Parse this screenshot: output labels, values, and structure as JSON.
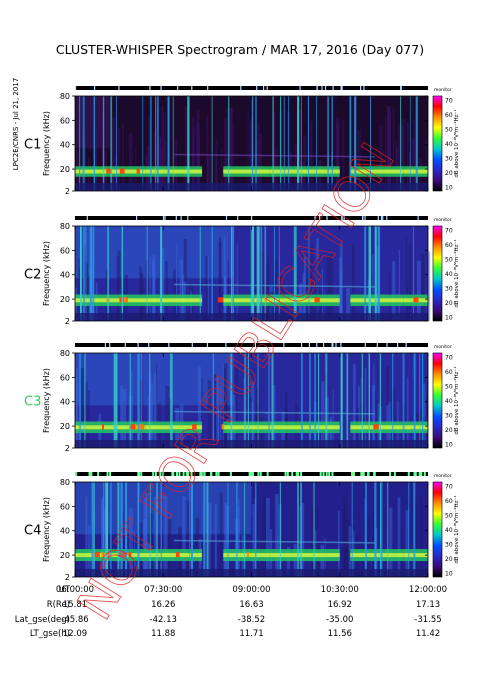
{
  "title": "CLUSTER-WHISPER Spectrogram / MAR 17, 2016 (Day 077)",
  "side_text": "LPC2E/CNRS - Jul 21, 2017",
  "watermark": "NOT FOR PUBLICATION",
  "colorbar": {
    "ticks": [
      "70",
      "60",
      "50",
      "40",
      "30",
      "20",
      "10"
    ],
    "label": "dB above 10⁻⁸V²m⁻²Hz⁻¹",
    "mode_label": "monitor",
    "colors": [
      "#ff00ff",
      "#ff0000",
      "#ff8c00",
      "#ffff00",
      "#32ff32",
      "#00c8c8",
      "#0050ff",
      "#2828c8",
      "#3c0a78",
      "#000000"
    ]
  },
  "chart_data": {
    "type": "heatmap",
    "title": "CLUSTER-WHISPER Spectrogram / MAR 17, 2016 (Day 077)",
    "ylabel": "Frequency (kHz)",
    "yticks": [
      "80",
      "60",
      "40",
      "20",
      "2"
    ],
    "ylim": [
      2,
      80
    ],
    "x_ticks": [
      "06:00:00",
      "07:30:00",
      "09:00:00",
      "10:30:00",
      "12:00:00"
    ],
    "xlim": [
      "06:00:00",
      "12:00:00"
    ],
    "colorbar_range": [
      10,
      70
    ],
    "panels": [
      {
        "name": "C1",
        "name_color": "#000000",
        "base": "#1c0a2c",
        "band_khz": 18,
        "band_strength": 0.7,
        "bright_region": [
          0.0,
          0.1
        ]
      },
      {
        "name": "C2",
        "name_color": "#000000",
        "base": "#28289c",
        "band_khz": 19,
        "band_strength": 0.9,
        "bright_region": [
          0.0,
          0.45
        ]
      },
      {
        "name": "C3",
        "name_color": "#33cc66",
        "base": "#28289c",
        "band_khz": 19,
        "band_strength": 0.9,
        "bright_region": [
          0.0,
          0.45
        ]
      },
      {
        "name": "C4",
        "name_color": "#000000",
        "base": "#22208c",
        "band_khz": 20,
        "band_strength": 1.0,
        "bright_region": [
          0.0,
          0.5
        ]
      }
    ],
    "ephemeris": {
      "labels": [
        "UT",
        "R(Re)",
        "Lat_gse(deg)",
        "LT_gse(h)"
      ],
      "rows": [
        [
          "06:00:00",
          "07:30:00",
          "09:00:00",
          "10:30:00",
          "12:00:00"
        ],
        [
          "15.81",
          "16.26",
          "16.63",
          "16.92",
          "17.13"
        ],
        [
          "-45.86",
          "-42.13",
          "-38.52",
          "-35.00",
          "-31.55"
        ],
        [
          "12.09",
          "11.88",
          "11.71",
          "11.56",
          "11.42"
        ]
      ]
    }
  }
}
